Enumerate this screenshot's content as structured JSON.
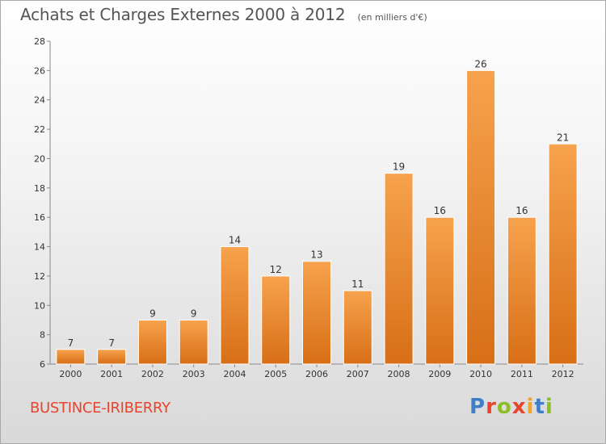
{
  "header": {
    "title": "Achats et Charges Externes 2000 à 2012",
    "unit": "(en milliers d'€)"
  },
  "footer": {
    "commune": "BUSTINCE-IRIBERRY",
    "brand": "Proxiti"
  },
  "colors": {
    "bar_light": "#f7a24e",
    "bar_dark": "#d76f16",
    "commune_text": "#e8442d",
    "brand_letters": [
      "#3f7fc8",
      "#e8442d",
      "#8cbf26",
      "#e8442d",
      "#f2a32a",
      "#3f7fc8",
      "#8cbf26"
    ]
  },
  "chart_data": {
    "type": "bar",
    "categories": [
      "2000",
      "2001",
      "2002",
      "2003",
      "2004",
      "2005",
      "2006",
      "2007",
      "2008",
      "2009",
      "2010",
      "2011",
      "2012"
    ],
    "values": [
      7,
      7,
      9,
      9,
      14,
      12,
      13,
      11,
      19,
      16,
      26,
      16,
      21
    ],
    "value_labels": [
      "7",
      "7",
      "9",
      "9",
      "14",
      "12",
      "13",
      "11",
      "19",
      "16",
      "26",
      "16",
      "21"
    ],
    "ylim": [
      6,
      28
    ],
    "yticks": [
      "6",
      "8",
      "10",
      "12",
      "14",
      "16",
      "18",
      "20",
      "22",
      "24",
      "26",
      "28"
    ],
    "grid": false
  }
}
